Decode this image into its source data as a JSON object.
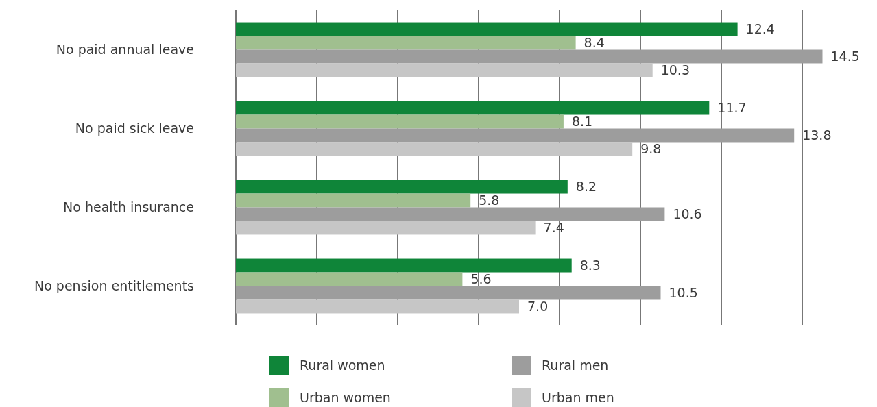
{
  "chart_data": {
    "type": "bar",
    "orientation": "horizontal",
    "categories": [
      "No paid annual leave",
      "No paid sick leave",
      "No health insurance",
      "No pension entitlements"
    ],
    "series": [
      {
        "name": "Rural women",
        "color": "#0f8539",
        "values": [
          12.4,
          11.7,
          8.2,
          8.3
        ],
        "value_labels": [
          "12.4",
          "11.7",
          "8.2",
          "8.3"
        ]
      },
      {
        "name": "Urban women",
        "color": "#a0bf8f",
        "values": [
          8.4,
          8.1,
          5.8,
          5.6
        ],
        "value_labels": [
          "8.4",
          "8.1",
          "5.8",
          "5.6"
        ]
      },
      {
        "name": "Rural men",
        "color": "#9d9d9d",
        "values": [
          14.5,
          13.8,
          10.6,
          10.5
        ],
        "value_labels": [
          "14.5",
          "13.8",
          "10.6",
          "10.5"
        ]
      },
      {
        "name": "Urban men",
        "color": "#c6c6c6",
        "values": [
          10.3,
          9.8,
          7.4,
          7.0
        ],
        "value_labels": [
          "10.3",
          "9.8",
          "7.4",
          "7.0"
        ]
      }
    ],
    "xticks": [
      {
        "value": 0,
        "label": null
      },
      {
        "value": 2,
        "label": null
      },
      {
        "value": 4,
        "label": null
      },
      {
        "value": 6,
        "label": null
      },
      {
        "value": 8,
        "label": null
      },
      {
        "value": 10,
        "label": null
      },
      {
        "value": 12,
        "label": null
      },
      {
        "value": 14,
        "label": null
      }
    ],
    "grid": "x",
    "tick_labels": "y",
    "legend": "bottom"
  }
}
